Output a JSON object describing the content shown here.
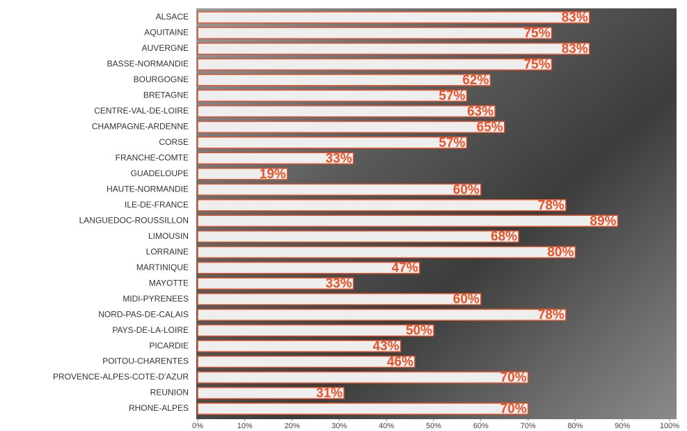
{
  "chart_data": {
    "type": "bar",
    "orientation": "horizontal",
    "categories": [
      "ALSACE",
      "AQUITAINE",
      "AUVERGNE",
      "BASSE-NORMANDIE",
      "BOURGOGNE",
      "BRETAGNE",
      "CENTRE-VAL-DE-LOIRE",
      "CHAMPAGNE-ARDENNE",
      "CORSE",
      "FRANCHE-COMTE",
      "GUADELOUPE",
      "HAUTE-NORMANDIE",
      "ILE-DE-FRANCE",
      "LANGUEDOC-ROUSSILLON",
      "LIMOUSIN",
      "LORRAINE",
      "MARTINIQUE",
      "MAYOTTE",
      "MIDI-PYRENEES",
      "NORD-PAS-DE-CALAIS",
      "PAYS-DE-LA-LOIRE",
      "PICARDIE",
      "POITOU-CHARENTES",
      "PROVENCE-ALPES-COTE-D'AZUR",
      "REUNION",
      "RHONE-ALPES"
    ],
    "values": [
      83,
      75,
      83,
      75,
      62,
      57,
      63,
      65,
      57,
      33,
      19,
      60,
      78,
      89,
      68,
      80,
      47,
      33,
      60,
      78,
      50,
      43,
      46,
      70,
      31,
      70
    ],
    "value_labels": [
      "83%",
      "75%",
      "83%",
      "75%",
      "62%",
      "57%",
      "63%",
      "65%",
      "57%",
      "33%",
      "19%",
      "60%",
      "78%",
      "89%",
      "68%",
      "80%",
      "47%",
      "33%",
      "60%",
      "78%",
      "50%",
      "43%",
      "46%",
      "70%",
      "31%",
      "70%"
    ],
    "color": "#eeeeee",
    "edge_color": "#e0522a",
    "label_color": "#e8542a",
    "xlim": [
      0,
      100
    ],
    "xticks": [
      {
        "value": 0,
        "label": "0%"
      },
      {
        "value": 10,
        "label": "10%"
      },
      {
        "value": 20,
        "label": "20%"
      },
      {
        "value": 30,
        "label": "30%"
      },
      {
        "value": 40,
        "label": "40%"
      },
      {
        "value": 50,
        "label": "50%"
      },
      {
        "value": 60,
        "label": "60%"
      },
      {
        "value": 70,
        "label": "70%"
      },
      {
        "value": 80,
        "label": "80%"
      },
      {
        "value": 90,
        "label": "90%"
      },
      {
        "value": 100,
        "label": "100%"
      }
    ]
  }
}
